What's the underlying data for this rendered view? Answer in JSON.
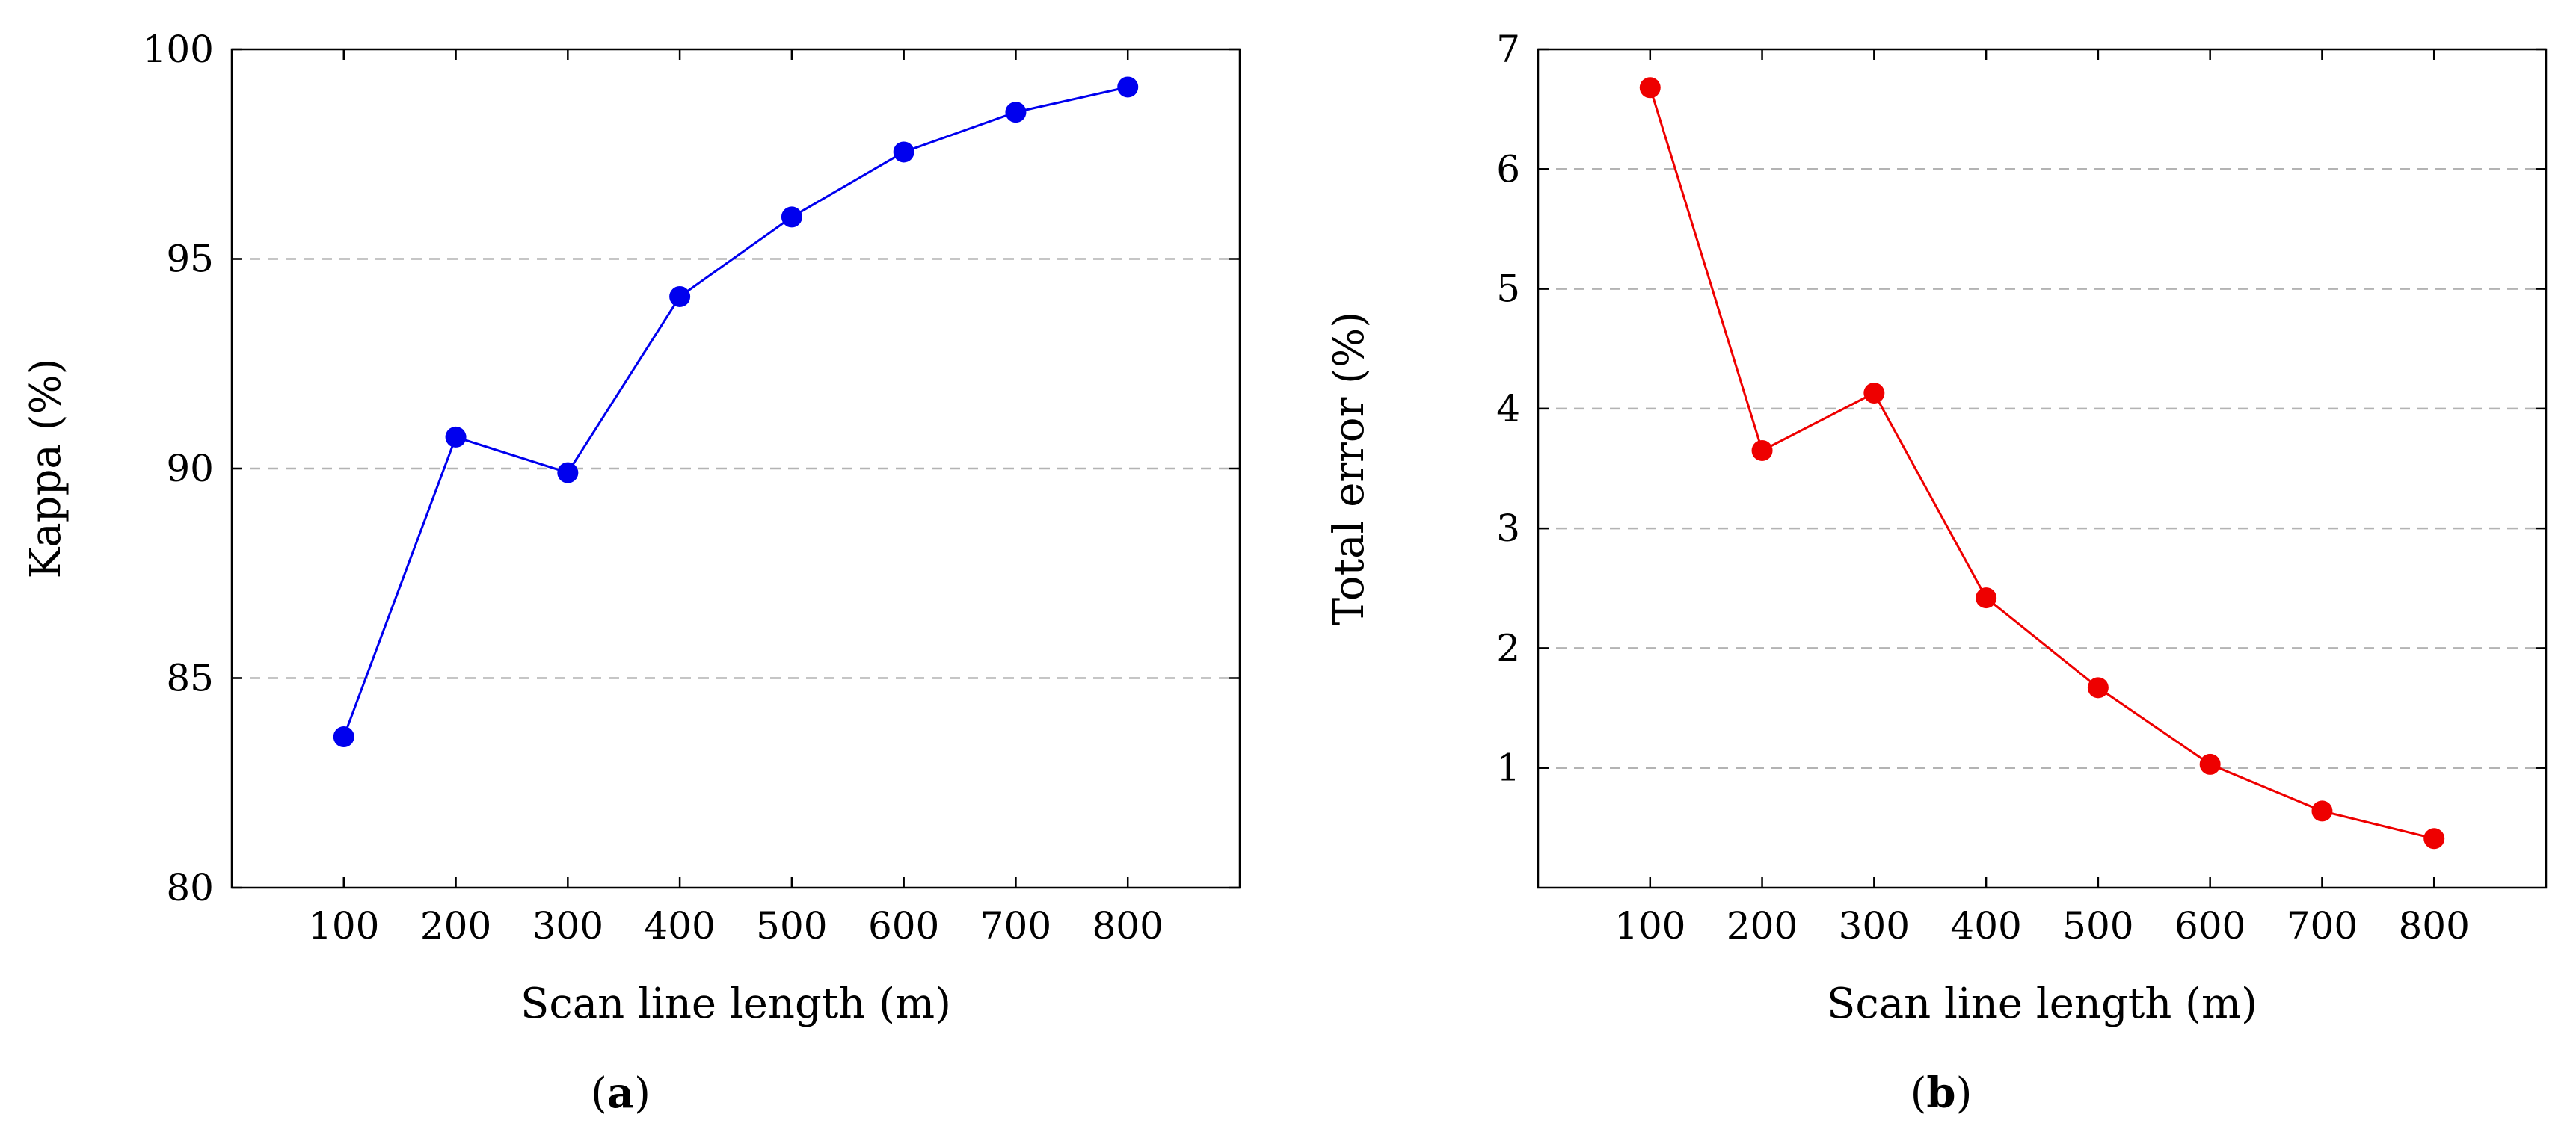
{
  "chart_data": [
    {
      "type": "line",
      "panel_label": "a",
      "title": "",
      "xlabel": "Scan line length (m)",
      "ylabel": "Kappa (%)",
      "x": [
        100,
        200,
        300,
        400,
        500,
        600,
        700,
        800
      ],
      "xticks": [
        "100",
        "200",
        "300",
        "400",
        "500",
        "600",
        "700",
        "800"
      ],
      "xlim": [
        0,
        900
      ],
      "ylim": [
        80,
        100
      ],
      "yticks": [
        "80",
        "85",
        "90",
        "95",
        "100"
      ],
      "ytick_values": [
        80,
        85,
        90,
        95,
        100
      ],
      "grid": "y-dashed",
      "color": "#0000ee",
      "series": [
        {
          "name": "Kappa",
          "values": [
            83.6,
            90.75,
            89.9,
            94.1,
            96.0,
            97.55,
            98.5,
            99.1
          ]
        }
      ]
    },
    {
      "type": "line",
      "panel_label": "b",
      "title": "",
      "xlabel": "Scan line length (m)",
      "ylabel": "Total error (%)",
      "x": [
        100,
        200,
        300,
        400,
        500,
        600,
        700,
        800
      ],
      "xticks": [
        "100",
        "200",
        "300",
        "400",
        "500",
        "600",
        "700",
        "800"
      ],
      "xlim": [
        0,
        900
      ],
      "ylim": [
        0,
        7
      ],
      "yticks": [
        "1",
        "2",
        "3",
        "4",
        "5",
        "6",
        "7"
      ],
      "ytick_values": [
        1,
        2,
        3,
        4,
        5,
        6,
        7
      ],
      "grid": "y-dashed",
      "color": "#ee0000",
      "series": [
        {
          "name": "Total error",
          "values": [
            6.68,
            3.65,
            4.13,
            2.42,
            1.67,
            1.03,
            0.64,
            0.41
          ]
        }
      ]
    }
  ]
}
